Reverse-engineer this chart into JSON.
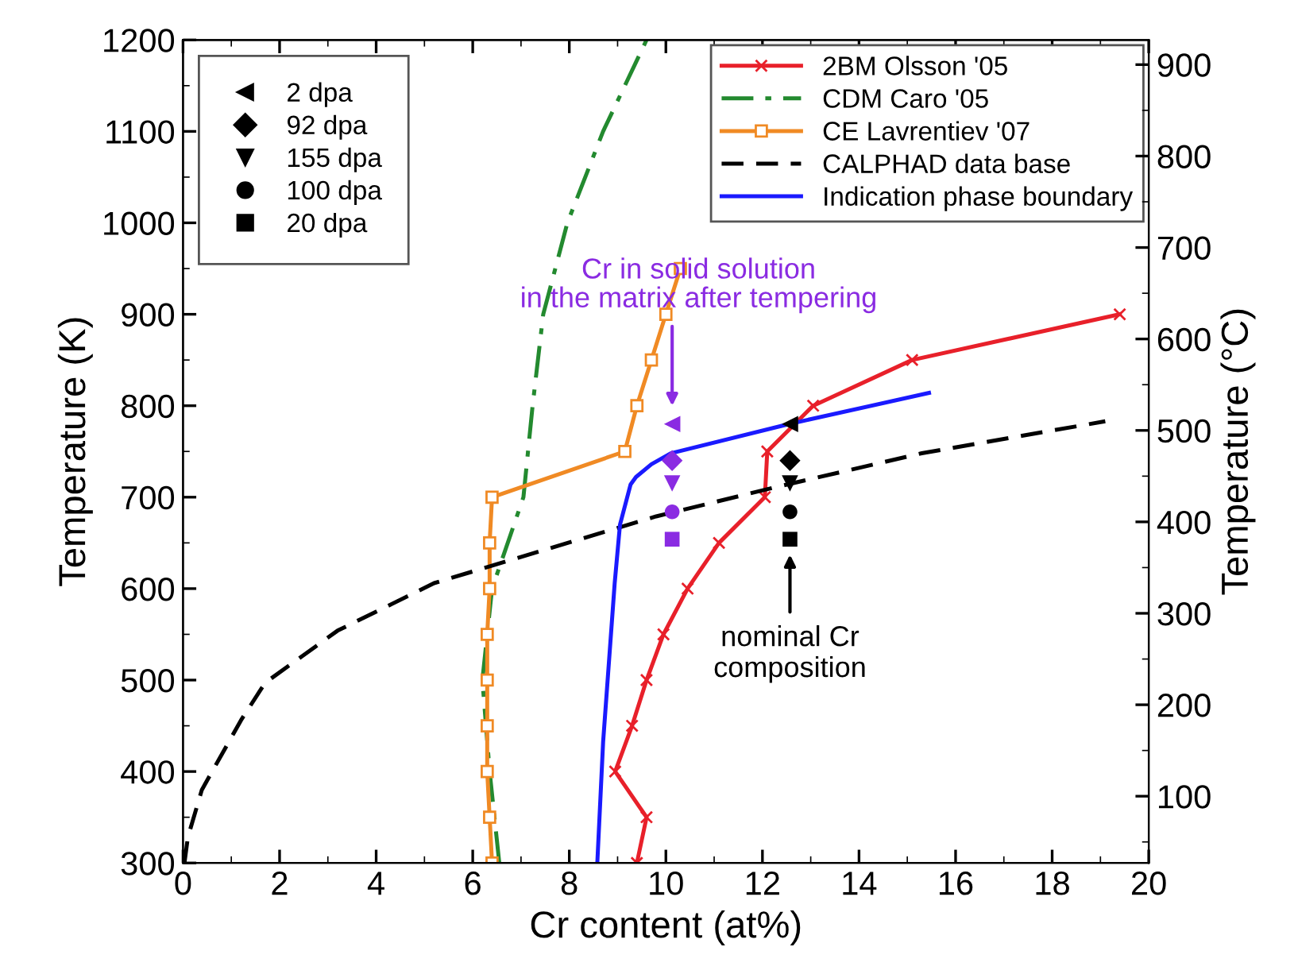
{
  "chart_data": {
    "type": "line",
    "xlabel": "Cr content (at%)",
    "ylabel": "Temperature (K)",
    "y2label": "Temperature (°C)",
    "xlim": [
      0,
      20
    ],
    "xticks": [
      0,
      2,
      4,
      6,
      8,
      10,
      12,
      14,
      16,
      18,
      20
    ],
    "ylim": [
      300,
      1200
    ],
    "yticks": [
      300,
      400,
      500,
      600,
      700,
      800,
      900,
      1000,
      1100,
      1200
    ],
    "y2lim": [
      27,
      927
    ],
    "y2ticks": [
      100,
      200,
      300,
      400,
      500,
      600,
      700,
      800,
      900
    ],
    "grid": false,
    "legend": "top right",
    "series": [
      {
        "name": "2BM Olsson '05",
        "color": "#e8202a",
        "marker": "cross",
        "line_style": "solid",
        "x": [
          9.4,
          9.6,
          8.95,
          9.3,
          9.6,
          9.95,
          10.45,
          11.1,
          12.05,
          12.1,
          13.05,
          15.1,
          19.4
        ],
        "values": [
          300,
          350,
          400,
          450,
          500,
          550,
          600,
          650,
          700,
          750,
          800,
          850,
          900
        ]
      },
      {
        "name": "CDM Caro '05",
        "color": "#238a2f",
        "marker": "none",
        "line_style": "dashdot",
        "x": [
          6.55,
          6.35,
          6.2,
          6.4,
          7.05,
          7.24,
          7.46,
          7.96,
          8.7,
          9.6
        ],
        "values": [
          300,
          400,
          500,
          600,
          700,
          800,
          900,
          1000,
          1100,
          1200
        ]
      },
      {
        "name": "CE Lavrentiev '07",
        "color": "#f08a24",
        "marker": "square",
        "line_style": "solid",
        "x": [
          6.4,
          6.35,
          6.3,
          6.3,
          6.3,
          6.3,
          6.35,
          6.35,
          6.4,
          9.15,
          9.4,
          9.7,
          10.0,
          10.3
        ],
        "values": [
          300,
          350,
          400,
          450,
          500,
          550,
          600,
          650,
          700,
          750,
          800,
          850,
          900,
          950
        ]
      },
      {
        "name": "CALPHAD data base",
        "color": "#000000",
        "marker": "none",
        "line_style": "dashed",
        "x": [
          0.03,
          0.1,
          0.39,
          1.2,
          1.7,
          3.2,
          5.2,
          7.4,
          9.8,
          12.2,
          15.3,
          19.1
        ],
        "values": [
          300,
          328,
          380,
          456,
          497,
          554,
          606,
          641,
          679,
          710,
          748,
          783
        ]
      },
      {
        "name": "Indication phase boundary",
        "color": "#1a1aff",
        "marker": "none",
        "line_style": "solid",
        "x": [
          8.58,
          8.7,
          8.94,
          9.05,
          9.27,
          9.38,
          9.7,
          10.1,
          12.55,
          15.45
        ],
        "values": [
          300,
          432,
          606,
          670,
          714,
          722,
          736,
          748,
          780,
          814
        ]
      },
      {
        "name": "2 dpa",
        "type": "scatter",
        "marker": "triangle-left",
        "color": "#000000",
        "colors": [
          "#8a2be2",
          "#000000"
        ],
        "x": [
          10.13,
          12.57
        ],
        "values": [
          780,
          780
        ]
      },
      {
        "name": "92 dpa",
        "type": "scatter",
        "marker": "diamond",
        "color": "#000000",
        "colors": [
          "#8a2be2",
          "#000000"
        ],
        "x": [
          10.13,
          12.57
        ],
        "values": [
          740,
          740
        ]
      },
      {
        "name": "155 dpa",
        "type": "scatter",
        "marker": "triangle",
        "color": "#000000",
        "colors": [
          "#8a2be2",
          "#000000"
        ],
        "x": [
          10.13,
          12.57
        ],
        "values": [
          715,
          715
        ]
      },
      {
        "name": "100 dpa",
        "type": "scatter",
        "marker": "circle",
        "color": "#000000",
        "colors": [
          "#8a2be2",
          "#000000"
        ],
        "x": [
          10.13,
          12.57
        ],
        "values": [
          684,
          684
        ]
      },
      {
        "name": "20 dpa",
        "type": "scatter",
        "marker": "square",
        "color": "#000000",
        "colors": [
          "#8a2be2",
          "#000000"
        ],
        "x": [
          10.13,
          12.57
        ],
        "values": [
          654,
          654
        ]
      }
    ],
    "annotations": [
      "Cr in solid solution\nin the matrix after tempering",
      "nominal Cr\ncomposition"
    ]
  }
}
